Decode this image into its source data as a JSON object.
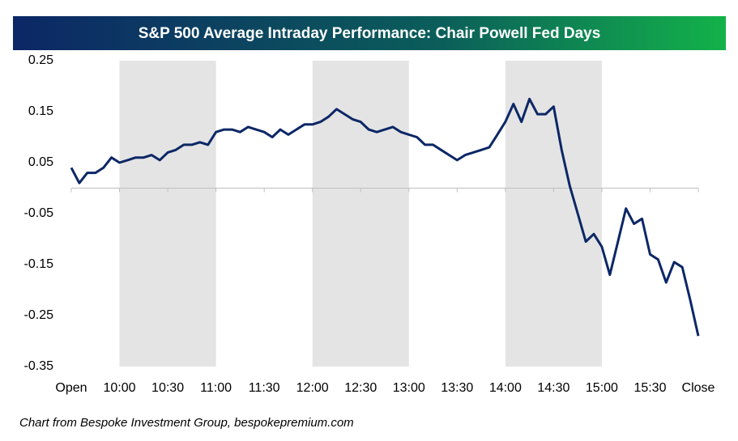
{
  "chart_data": {
    "type": "line",
    "title": "S&P 500 Average Intraday Performance: Chair Powell Fed Days",
    "source": "Chart from Bespoke Investment Group, bespokepremium.com",
    "categories": [
      "Open",
      null,
      null,
      null,
      null,
      null,
      "10:00",
      null,
      null,
      null,
      null,
      null,
      "10:30",
      null,
      null,
      null,
      null,
      null,
      "11:00",
      null,
      null,
      null,
      null,
      null,
      "11:30",
      null,
      null,
      null,
      null,
      null,
      "12:00",
      null,
      null,
      null,
      null,
      null,
      "12:30",
      null,
      null,
      null,
      null,
      null,
      "13:00",
      null,
      null,
      null,
      null,
      null,
      "13:30",
      null,
      null,
      null,
      null,
      null,
      "14:00",
      null,
      null,
      null,
      null,
      null,
      "14:30",
      null,
      null,
      null,
      null,
      null,
      "15:00",
      null,
      null,
      null,
      null,
      null,
      "15:30",
      null,
      null,
      null,
      null,
      null,
      "Close"
    ],
    "series": [
      {
        "color": "#0c2766",
        "values": [
          0.04,
          0.01,
          0.03,
          0.03,
          0.04,
          0.06,
          0.05,
          0.055,
          0.06,
          0.06,
          0.065,
          0.055,
          0.07,
          0.075,
          0.085,
          0.085,
          0.09,
          0.085,
          0.11,
          0.115,
          0.115,
          0.11,
          0.12,
          0.115,
          0.11,
          0.1,
          0.115,
          0.105,
          0.115,
          0.125,
          0.125,
          0.13,
          0.14,
          0.155,
          0.145,
          0.135,
          0.13,
          0.115,
          0.11,
          0.115,
          0.12,
          0.11,
          0.105,
          0.1,
          0.085,
          0.085,
          0.075,
          0.065,
          0.055,
          0.065,
          0.07,
          0.075,
          0.08,
          0.105,
          0.13,
          0.165,
          0.13,
          0.175,
          0.145,
          0.145,
          0.16,
          0.075,
          0.005,
          -0.05,
          -0.105,
          -0.09,
          -0.115,
          -0.17,
          -0.105,
          -0.04,
          -0.07,
          -0.06,
          -0.13,
          -0.14,
          -0.185,
          -0.145,
          -0.155,
          -0.22,
          -0.29
        ]
      }
    ],
    "ylim": [
      -0.35,
      0.25
    ],
    "yticks": [
      -0.35,
      -0.25,
      -0.15,
      -0.05,
      0.05,
      0.15,
      0.25
    ],
    "grid": false,
    "shade_color": "#e4e4e4"
  }
}
